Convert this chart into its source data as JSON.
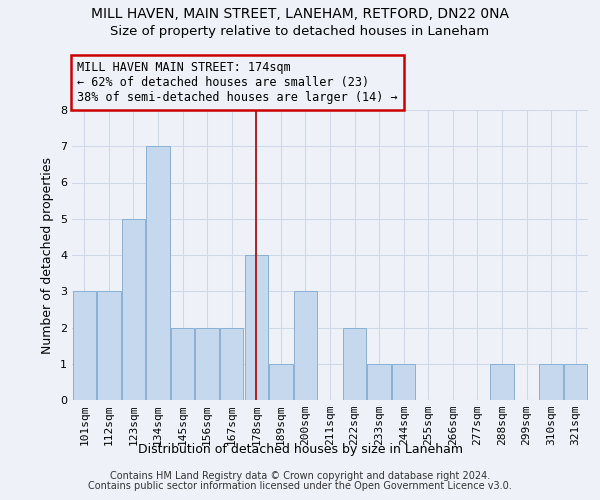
{
  "title1": "MILL HAVEN, MAIN STREET, LANEHAM, RETFORD, DN22 0NA",
  "title2": "Size of property relative to detached houses in Laneham",
  "xlabel": "Distribution of detached houses by size in Laneham",
  "ylabel": "Number of detached properties",
  "footer1": "Contains HM Land Registry data © Crown copyright and database right 2024.",
  "footer2": "Contains public sector information licensed under the Open Government Licence v3.0.",
  "annotation_line1": "MILL HAVEN MAIN STREET: 174sqm",
  "annotation_line2": "← 62% of detached houses are smaller (23)",
  "annotation_line3": "38% of semi-detached houses are larger (14) →",
  "categories": [
    "101sqm",
    "112sqm",
    "123sqm",
    "134sqm",
    "145sqm",
    "156sqm",
    "167sqm",
    "178sqm",
    "189sqm",
    "200sqm",
    "211sqm",
    "222sqm",
    "233sqm",
    "244sqm",
    "255sqm",
    "266sqm",
    "277sqm",
    "288sqm",
    "299sqm",
    "310sqm",
    "321sqm"
  ],
  "values": [
    3,
    3,
    5,
    7,
    2,
    2,
    2,
    4,
    1,
    3,
    0,
    2,
    1,
    1,
    0,
    0,
    0,
    1,
    0,
    1,
    1
  ],
  "bar_color": "#c5d8ee",
  "bar_edge_color": "#8ab0d4",
  "vline_color": "#aa0000",
  "vline_index": 7,
  "annotation_box_color": "#cc0000",
  "ylim": [
    0,
    8
  ],
  "yticks": [
    0,
    1,
    2,
    3,
    4,
    5,
    6,
    7,
    8
  ],
  "grid_color": "#d0d8e8",
  "bg_color": "#eef2f8",
  "title_fontsize": 10,
  "subtitle_fontsize": 9.5,
  "axis_label_fontsize": 9,
  "tick_fontsize": 8,
  "footer_fontsize": 7
}
